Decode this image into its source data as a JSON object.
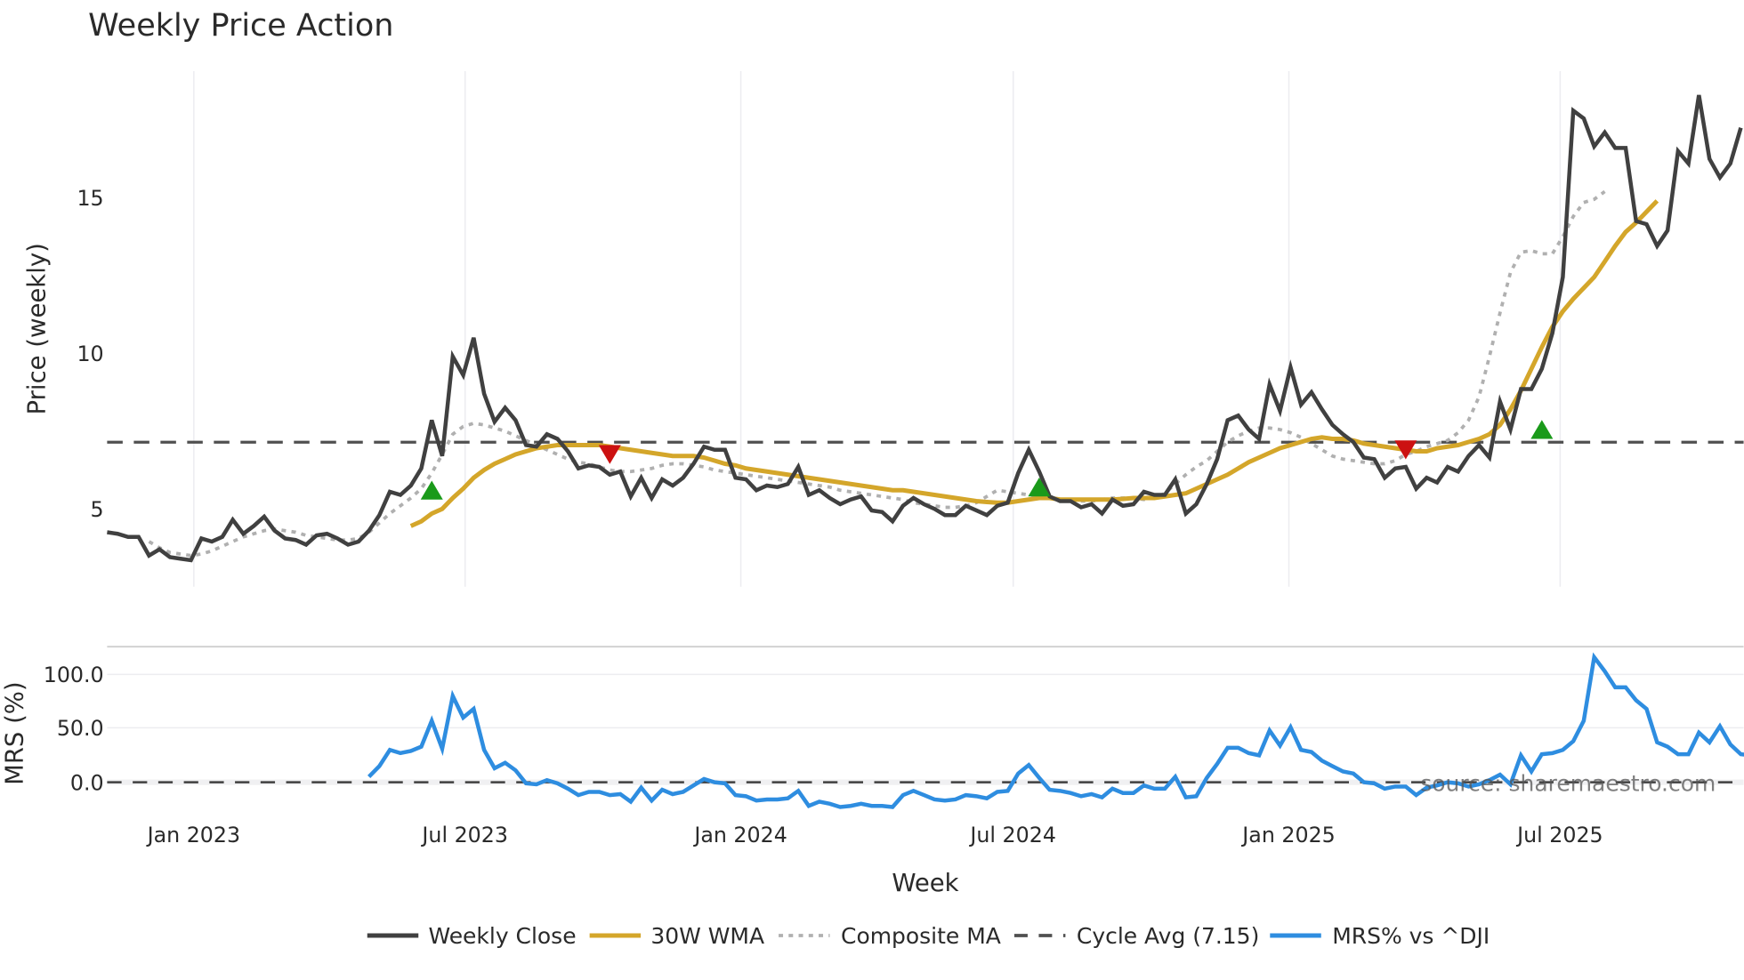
{
  "chart_data": {
    "type": "line",
    "title": "Weekly Price Action",
    "xlabel": "Week",
    "panels": [
      {
        "name": "price",
        "ylabel": "Price (weekly)",
        "yticks": [
          5,
          10,
          15
        ],
        "ylim": [
          2.5,
          19
        ],
        "grid": "vertical"
      },
      {
        "name": "mrs",
        "ylabel": "MRS (%)",
        "yticks": [
          "0.0",
          "50.0",
          "100.0"
        ],
        "ylim": [
          -25,
          125
        ],
        "grid": "horizontal"
      }
    ],
    "xticks": [
      "Jan 2023",
      "Jul 2023",
      "Jan 2024",
      "Jul 2024",
      "Jan 2025",
      "Jul 2025"
    ],
    "x_start_week_offset": -8,
    "series": [
      {
        "name": "Weekly Close",
        "color": "#404040",
        "values": [
          4.25,
          4.2,
          4.1,
          4.1,
          3.5,
          3.7,
          3.45,
          3.4,
          3.35,
          4.05,
          3.95,
          4.1,
          4.65,
          4.2,
          4.45,
          4.75,
          4.3,
          4.05,
          4.0,
          3.85,
          4.15,
          4.2,
          4.05,
          3.85,
          3.95,
          4.3,
          4.8,
          5.55,
          5.45,
          5.75,
          6.3,
          7.85,
          6.7,
          9.9,
          9.3,
          10.5,
          8.7,
          7.8,
          8.25,
          7.85,
          7.05,
          7.0,
          7.4,
          7.25,
          6.85,
          6.3,
          6.4,
          6.35,
          6.1,
          6.2,
          5.4,
          6.0,
          5.35,
          5.95,
          5.75,
          6.0,
          6.45,
          7.0,
          6.9,
          6.9,
          6.0,
          5.95,
          5.6,
          5.75,
          5.7,
          5.8,
          6.35,
          5.45,
          5.6,
          5.35,
          5.15,
          5.3,
          5.4,
          4.95,
          4.9,
          4.6,
          5.1,
          5.35,
          5.15,
          5.0,
          4.8,
          4.8,
          5.1,
          4.95,
          4.8,
          5.1,
          5.2,
          6.15,
          6.9,
          6.2,
          5.4,
          5.25,
          5.25,
          5.05,
          5.15,
          4.85,
          5.3,
          5.1,
          5.15,
          5.55,
          5.45,
          5.45,
          5.95,
          4.85,
          5.15,
          5.8,
          6.6,
          7.85,
          8.0,
          7.55,
          7.25,
          9.0,
          8.15,
          9.55,
          8.35,
          8.75,
          8.2,
          7.7,
          7.4,
          7.15,
          6.65,
          6.6,
          6.0,
          6.3,
          6.35,
          5.65,
          6.0,
          5.85,
          6.35,
          6.2,
          6.7,
          7.05,
          6.65,
          8.45,
          7.55,
          8.85,
          8.85,
          9.5,
          10.65,
          12.45,
          17.8,
          17.55,
          16.65,
          17.1,
          16.6,
          16.6,
          14.25,
          14.15,
          13.45,
          13.95,
          16.5,
          16.1,
          18.3,
          16.25,
          15.65,
          16.1,
          17.25
        ]
      },
      {
        "name": "30W WMA",
        "color": "#d4a62a",
        "start_index": 29,
        "values": [
          4.45,
          4.6,
          4.85,
          5.0,
          5.35,
          5.65,
          6.0,
          6.25,
          6.45,
          6.6,
          6.75,
          6.85,
          6.95,
          7.0,
          7.05,
          7.05,
          7.05,
          7.05,
          7.05,
          7.0,
          6.95,
          6.9,
          6.85,
          6.8,
          6.75,
          6.7,
          6.7,
          6.7,
          6.65,
          6.55,
          6.45,
          6.4,
          6.3,
          6.25,
          6.2,
          6.15,
          6.1,
          6.05,
          6.0,
          5.95,
          5.9,
          5.85,
          5.8,
          5.75,
          5.7,
          5.65,
          5.6,
          5.6,
          5.55,
          5.5,
          5.45,
          5.4,
          5.35,
          5.3,
          5.25,
          5.22,
          5.2,
          5.2,
          5.25,
          5.3,
          5.35,
          5.35,
          5.3,
          5.3,
          5.3,
          5.3,
          5.3,
          5.3,
          5.32,
          5.35,
          5.35,
          5.35,
          5.4,
          5.45,
          5.5,
          5.65,
          5.8,
          5.95,
          6.1,
          6.3,
          6.5,
          6.65,
          6.8,
          6.95,
          7.05,
          7.15,
          7.25,
          7.3,
          7.25,
          7.25,
          7.2,
          7.1,
          7.05,
          7.0,
          6.95,
          6.9,
          6.85,
          6.85,
          6.95,
          7.0,
          7.05,
          7.15,
          7.25,
          7.4,
          7.7,
          8.2,
          8.8,
          9.5,
          10.2,
          10.85,
          11.35,
          11.75,
          12.1,
          12.45,
          12.95,
          13.45,
          13.9,
          14.2,
          14.55,
          14.9
        ]
      },
      {
        "name": "Composite MA",
        "color": "#b0b0b0",
        "start_index": 4,
        "values": [
          3.95,
          3.75,
          3.6,
          3.55,
          3.5,
          3.55,
          3.65,
          3.8,
          3.95,
          4.1,
          4.2,
          4.3,
          4.35,
          4.3,
          4.25,
          4.15,
          4.1,
          4.05,
          4.0,
          4.0,
          4.05,
          4.25,
          4.55,
          4.85,
          5.1,
          5.35,
          5.65,
          6.15,
          6.75,
          7.4,
          7.65,
          7.75,
          7.7,
          7.6,
          7.5,
          7.35,
          7.2,
          7.05,
          6.9,
          6.75,
          6.6,
          6.5,
          6.45,
          6.35,
          6.25,
          6.2,
          6.2,
          6.25,
          6.3,
          6.4,
          6.45,
          6.45,
          6.4,
          6.35,
          6.25,
          6.2,
          6.15,
          6.1,
          6.05,
          6.0,
          5.95,
          5.9,
          5.85,
          5.8,
          5.75,
          5.7,
          5.6,
          5.55,
          5.5,
          5.45,
          5.4,
          5.35,
          5.3,
          5.2,
          5.15,
          5.1,
          5.05,
          5.05,
          5.1,
          5.2,
          5.4,
          5.6,
          5.55,
          5.5,
          5.45,
          5.4,
          5.35,
          5.3,
          5.25,
          5.25,
          5.25,
          5.3,
          5.35,
          5.35,
          5.35,
          5.3,
          5.35,
          5.5,
          5.8,
          6.1,
          6.35,
          6.55,
          6.85,
          7.15,
          7.35,
          7.5,
          7.6,
          7.6,
          7.55,
          7.45,
          7.3,
          7.1,
          6.9,
          6.7,
          6.6,
          6.55,
          6.5,
          6.45,
          6.45,
          6.55,
          6.75,
          6.85,
          7.0,
          7.1,
          7.2,
          7.45,
          7.85,
          8.6,
          9.9,
          11.3,
          12.6,
          13.25,
          13.3,
          13.2,
          13.2,
          13.75,
          14.4,
          14.85,
          14.95,
          15.2
        ]
      },
      {
        "name": "Cycle Avg (7.15)",
        "color": "#505050",
        "style": "dashed",
        "constant": 7.15
      },
      {
        "name": "MRS% vs ^DJI",
        "color": "#2e8de0",
        "panel": "mrs",
        "start_index": 25,
        "values": [
          5,
          15,
          30,
          27,
          29,
          33,
          57,
          31,
          80,
          60,
          68,
          30,
          13,
          18,
          11,
          -1,
          -2,
          2,
          -1,
          -6,
          -12,
          -9,
          -9,
          -12,
          -11,
          -18,
          -5,
          -17,
          -7,
          -11,
          -9,
          -3,
          3,
          0,
          -1,
          -12,
          -13,
          -17,
          -16,
          -16,
          -15,
          -8,
          -22,
          -18,
          -20,
          -23,
          -22,
          -20,
          -22,
          -22,
          -23,
          -12,
          -8,
          -12,
          -16,
          -17,
          -16,
          -12,
          -13,
          -15,
          -9,
          -8,
          8,
          16,
          4,
          -7,
          -8,
          -10,
          -13,
          -11,
          -14,
          -6,
          -10,
          -10,
          -3,
          -6,
          -6,
          5,
          -14,
          -13,
          4,
          17,
          32,
          32,
          27,
          25,
          48,
          34,
          51,
          30,
          28,
          20,
          15,
          10,
          8,
          0,
          -1,
          -6,
          -4,
          -4,
          -12,
          -5,
          -3,
          0,
          -1,
          -4,
          -2,
          2,
          7,
          -2,
          25,
          10,
          26,
          27,
          30,
          38,
          57,
          116,
          103,
          88,
          88,
          76,
          68,
          37,
          33,
          26,
          26,
          46,
          37,
          52,
          35,
          26,
          25,
          30
        ]
      }
    ],
    "markers": [
      {
        "type": "buy",
        "shape": "triangle-up",
        "color": "#1a9a1a",
        "index": 31,
        "value": 5.55
      },
      {
        "type": "sell",
        "shape": "triangle-down",
        "color": "#cc1111",
        "index": 48,
        "value": 6.8
      },
      {
        "type": "buy",
        "shape": "triangle-up",
        "color": "#1a9a1a",
        "index": 89,
        "value": 5.65
      },
      {
        "type": "sell",
        "shape": "triangle-down",
        "color": "#cc1111",
        "index": 124,
        "value": 6.95
      },
      {
        "type": "buy",
        "shape": "triangle-up",
        "color": "#1a9a1a",
        "index": 137,
        "value": 7.5
      }
    ],
    "legend": {
      "position": "bottom",
      "entries": [
        "Weekly Close",
        "30W WMA",
        "Composite MA",
        "Cycle Avg (7.15)",
        "MRS% vs ^DJI"
      ]
    },
    "annotations": [
      "source: sharemaestro.com"
    ]
  },
  "labels": {
    "title": "Weekly Price Action",
    "ylabel_price": "Price (weekly)",
    "ylabel_mrs": "MRS (%)",
    "xlabel": "Week",
    "source": "source: sharemaestro.com",
    "ytick_15": "15",
    "ytick_10": "10",
    "ytick_5": "5",
    "mrs_100": "100.0",
    "mrs_50": "50.0",
    "mrs_0": "0.0",
    "x_jan2023": "Jan 2023",
    "x_jul2023": "Jul 2023",
    "x_jan2024": "Jan 2024",
    "x_jul2024": "Jul 2024",
    "x_jan2025": "Jan 2025",
    "x_jul2025": "Jul 2025",
    "legend_close": "Weekly Close",
    "legend_wma": "30W WMA",
    "legend_comp": "Composite MA",
    "legend_cycle": "Cycle Avg (7.15)",
    "legend_mrs": "MRS% vs ^DJI"
  }
}
